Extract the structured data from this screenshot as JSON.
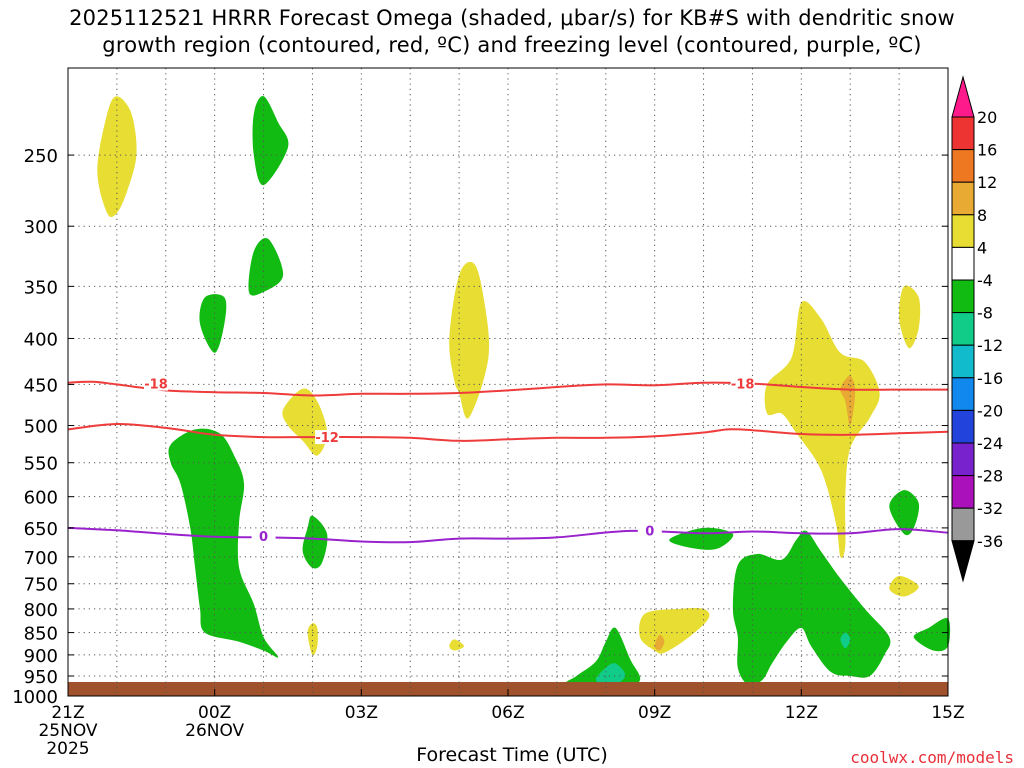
{
  "chart_data": {
    "type": "heatmap",
    "title_line1": "2025112521 HRRR Forecast Omega (shaded, μbar/s) for KB#S with dendritic snow",
    "title_line2": "growth region (contoured, red, ºC) and freezing level (contoured, purple, ºC)",
    "xlabel": "Forecast Time (UTC)",
    "credit": "coolwx.com/models",
    "x_ticks": [
      {
        "h": 0,
        "label": "21Z",
        "sub1": "25NOV",
        "sub2": "2025"
      },
      {
        "h": 3,
        "label": "00Z",
        "sub1": "26NOV",
        "sub2": ""
      },
      {
        "h": 6,
        "label": "03Z",
        "sub1": "",
        "sub2": ""
      },
      {
        "h": 9,
        "label": "06Z",
        "sub1": "",
        "sub2": ""
      },
      {
        "h": 12,
        "label": "09Z",
        "sub1": "",
        "sub2": ""
      },
      {
        "h": 15,
        "label": "12Z",
        "sub1": "",
        "sub2": ""
      },
      {
        "h": 18,
        "label": "15Z",
        "sub1": "",
        "sub2": ""
      }
    ],
    "xlim": [
      0,
      18
    ],
    "y_ticks": [
      250,
      300,
      350,
      400,
      450,
      500,
      550,
      600,
      650,
      700,
      750,
      800,
      850,
      900,
      950,
      1000
    ],
    "ylim": [
      1000,
      200
    ],
    "y_scale": "log",
    "colorbar": {
      "levels": [
        "20",
        "16",
        "12",
        "8",
        "4",
        "-4",
        "-8",
        "-12",
        "-16",
        "-20",
        "-24",
        "-28",
        "-32",
        "-36"
      ],
      "colors": [
        "#ff1a8c",
        "#ee3333",
        "#ee7722",
        "#e8aa33",
        "#e8dd33",
        "#ffffff",
        "#11bb11",
        "#11cc88",
        "#11bbcc",
        "#1188ee",
        "#2244dd",
        "#7722cc",
        "#aa11bb",
        "#999999",
        "#000000"
      ]
    },
    "contours": [
      {
        "label": "-18",
        "color": "#ee3b3b",
        "label_at": [
          [
            1.8,
            449
          ],
          [
            13.8,
            449
          ]
        ],
        "points": [
          [
            0,
            448
          ],
          [
            0.5,
            447
          ],
          [
            1,
            450
          ],
          [
            2,
            457
          ],
          [
            3,
            459
          ],
          [
            4,
            460
          ],
          [
            5,
            463
          ],
          [
            6,
            461
          ],
          [
            7,
            461
          ],
          [
            8,
            460
          ],
          [
            9,
            457
          ],
          [
            10,
            453
          ],
          [
            11,
            450
          ],
          [
            12,
            451
          ],
          [
            13,
            448
          ],
          [
            14,
            449
          ],
          [
            15,
            453
          ],
          [
            16,
            456
          ],
          [
            17,
            456
          ],
          [
            18,
            456
          ]
        ]
      },
      {
        "label": "-12",
        "color": "#ee3b3b",
        "label_at": [
          [
            5.3,
            515
          ]
        ],
        "points": [
          [
            0,
            505
          ],
          [
            1,
            498
          ],
          [
            2,
            503
          ],
          [
            3,
            512
          ],
          [
            4,
            515
          ],
          [
            5,
            515
          ],
          [
            6,
            515
          ],
          [
            7,
            516
          ],
          [
            8,
            520
          ],
          [
            9,
            518
          ],
          [
            10,
            516
          ],
          [
            11,
            516
          ],
          [
            12,
            514
          ],
          [
            13,
            509
          ],
          [
            13.5,
            505
          ],
          [
            14,
            506
          ],
          [
            15,
            511
          ],
          [
            16,
            512
          ],
          [
            17,
            510
          ],
          [
            18,
            508
          ]
        ]
      },
      {
        "label": "0",
        "color": "#9922cc",
        "label_at": [
          [
            4.0,
            664
          ],
          [
            11.9,
            654
          ]
        ],
        "points": [
          [
            0,
            650
          ],
          [
            1,
            654
          ],
          [
            2,
            660
          ],
          [
            3,
            665
          ],
          [
            4,
            666
          ],
          [
            5,
            668
          ],
          [
            6,
            673
          ],
          [
            7,
            674
          ],
          [
            8,
            668
          ],
          [
            9,
            668
          ],
          [
            10,
            666
          ],
          [
            11.5,
            655
          ],
          [
            13,
            659
          ],
          [
            14,
            656
          ],
          [
            15,
            659
          ],
          [
            16,
            659
          ],
          [
            17,
            652
          ],
          [
            18,
            658
          ]
        ]
      }
    ],
    "regions": [
      {
        "value": "4 to 8",
        "color": "#e8dd33",
        "points": [
          [
            0.8,
            290
          ],
          [
            0.6,
            260
          ],
          [
            0.8,
            225
          ],
          [
            1.0,
            215
          ],
          [
            1.3,
            225
          ],
          [
            1.4,
            250
          ],
          [
            1.2,
            275
          ],
          [
            1.0,
            290
          ]
        ]
      },
      {
        "value": "-4 to -8",
        "color": "#11bb11",
        "points": [
          [
            4.0,
            215
          ],
          [
            4.3,
            230
          ],
          [
            4.5,
            245
          ],
          [
            4.0,
            270
          ],
          [
            3.8,
            250
          ],
          [
            3.8,
            225
          ]
        ]
      },
      {
        "value": "-4 to -8",
        "color": "#11bb11",
        "points": [
          [
            3.7,
            355
          ],
          [
            3.8,
            320
          ],
          [
            4.1,
            310
          ],
          [
            4.4,
            340
          ],
          [
            4.0,
            355
          ]
        ]
      },
      {
        "value": "-4 to -8",
        "color": "#11bb11",
        "points": [
          [
            2.7,
            385
          ],
          [
            2.8,
            360
          ],
          [
            3.2,
            360
          ],
          [
            3.2,
            385
          ],
          [
            3.0,
            415
          ]
        ]
      },
      {
        "value": "4 to 8",
        "color": "#e8dd33",
        "points": [
          [
            7.9,
            445
          ],
          [
            7.8,
            400
          ],
          [
            8.0,
            340
          ],
          [
            8.3,
            330
          ],
          [
            8.5,
            360
          ],
          [
            8.6,
            420
          ],
          [
            8.2,
            490
          ],
          [
            8.0,
            460
          ]
        ]
      },
      {
        "value": "4 to 8",
        "color": "#e8dd33",
        "points": [
          [
            4.4,
            480
          ],
          [
            4.8,
            455
          ],
          [
            5.1,
            470
          ],
          [
            5.3,
            510
          ],
          [
            5.1,
            540
          ],
          [
            4.8,
            520
          ],
          [
            4.5,
            500
          ]
        ]
      },
      {
        "value": "-4 to -8",
        "color": "#11bb11",
        "points": [
          [
            2.1,
            525
          ],
          [
            2.6,
            505
          ],
          [
            3.1,
            510
          ],
          [
            3.4,
            540
          ],
          [
            3.6,
            580
          ],
          [
            3.5,
            640
          ],
          [
            3.5,
            720
          ],
          [
            3.8,
            790
          ],
          [
            4.0,
            860
          ],
          [
            4.3,
            905
          ],
          [
            4.0,
            890
          ],
          [
            3.5,
            870
          ],
          [
            2.8,
            850
          ],
          [
            2.7,
            800
          ],
          [
            2.6,
            720
          ],
          [
            2.5,
            650
          ],
          [
            2.3,
            580
          ],
          [
            2.1,
            550
          ]
        ]
      },
      {
        "value": "-4 to -8",
        "color": "#11bb11",
        "points": [
          [
            4.8,
            690
          ],
          [
            4.9,
            650
          ],
          [
            5.0,
            630
          ],
          [
            5.3,
            660
          ],
          [
            5.2,
            710
          ],
          [
            5.0,
            720
          ]
        ]
      },
      {
        "value": "4 to 8",
        "color": "#e8dd33",
        "points": [
          [
            4.9,
            850
          ],
          [
            5.0,
            830
          ],
          [
            5.1,
            840
          ],
          [
            5.1,
            880
          ],
          [
            5.0,
            900
          ]
        ]
      },
      {
        "value": "4 to 8",
        "color": "#e8dd33",
        "points": [
          [
            7.8,
            880
          ],
          [
            7.9,
            865
          ],
          [
            8.1,
            880
          ],
          [
            7.9,
            890
          ]
        ]
      },
      {
        "value": "4 to 8",
        "color": "#e8dd33",
        "points": [
          [
            14.3,
            485
          ],
          [
            14.3,
            450
          ],
          [
            14.8,
            420
          ],
          [
            15.0,
            365
          ],
          [
            15.4,
            380
          ],
          [
            15.8,
            415
          ],
          [
            16.3,
            425
          ],
          [
            16.6,
            460
          ],
          [
            16.4,
            490
          ],
          [
            16.0,
            530
          ],
          [
            15.9,
            600
          ],
          [
            15.9,
            680
          ],
          [
            15.8,
            700
          ],
          [
            15.7,
            640
          ],
          [
            15.4,
            560
          ],
          [
            14.9,
            510
          ],
          [
            14.6,
            485
          ]
        ]
      },
      {
        "value": "8 to 12",
        "color": "#e8aa33",
        "points": [
          [
            15.8,
            455
          ],
          [
            16.0,
            440
          ],
          [
            16.1,
            460
          ],
          [
            16.0,
            500
          ],
          [
            15.9,
            470
          ]
        ]
      },
      {
        "value": "4 to 8",
        "color": "#e8dd33",
        "points": [
          [
            17.0,
            380
          ],
          [
            17.1,
            350
          ],
          [
            17.4,
            360
          ],
          [
            17.4,
            390
          ],
          [
            17.2,
            410
          ]
        ]
      },
      {
        "value": "-4 to -8",
        "color": "#11bb11",
        "points": [
          [
            16.8,
            615
          ],
          [
            17.1,
            590
          ],
          [
            17.4,
            610
          ],
          [
            17.3,
            650
          ],
          [
            17.1,
            660
          ]
        ]
      },
      {
        "value": "4 to 8",
        "color": "#e8dd33",
        "points": [
          [
            16.8,
            760
          ],
          [
            17.0,
            735
          ],
          [
            17.4,
            755
          ],
          [
            17.1,
            775
          ]
        ]
      },
      {
        "value": "-4 to -8",
        "color": "#11bb11",
        "points": [
          [
            12.3,
            670
          ],
          [
            13.0,
            650
          ],
          [
            13.6,
            660
          ],
          [
            13.3,
            685
          ],
          [
            12.8,
            685
          ]
        ]
      },
      {
        "value": "4 to 8",
        "color": "#e8dd33",
        "points": [
          [
            11.7,
            860
          ],
          [
            11.8,
            810
          ],
          [
            12.5,
            800
          ],
          [
            13.0,
            800
          ],
          [
            13.1,
            820
          ],
          [
            12.7,
            860
          ],
          [
            12.2,
            895
          ],
          [
            12.0,
            890
          ]
        ]
      },
      {
        "value": "8 to 12",
        "color": "#e8aa33",
        "points": [
          [
            12.0,
            880
          ],
          [
            12.1,
            855
          ],
          [
            12.2,
            870
          ],
          [
            12.1,
            890
          ]
        ]
      },
      {
        "value": "-4 to -8",
        "color": "#11bb11",
        "points": [
          [
            10.2,
            970
          ],
          [
            10.4,
            950
          ],
          [
            10.8,
            915
          ],
          [
            11.0,
            870
          ],
          [
            11.2,
            840
          ],
          [
            11.5,
            910
          ],
          [
            11.7,
            960
          ],
          [
            11.3,
            985
          ],
          [
            10.8,
            990
          ]
        ]
      },
      {
        "value": "-8 to -12",
        "color": "#11cc88",
        "points": [
          [
            10.8,
            960
          ],
          [
            11.0,
            930
          ],
          [
            11.2,
            920
          ],
          [
            11.4,
            950
          ],
          [
            11.1,
            975
          ]
        ]
      },
      {
        "value": "-4 to -8",
        "color": "#11bb11",
        "points": [
          [
            13.7,
            715
          ],
          [
            14.1,
            695
          ],
          [
            14.6,
            705
          ],
          [
            14.9,
            670
          ],
          [
            15.1,
            655
          ],
          [
            15.4,
            690
          ],
          [
            15.8,
            740
          ],
          [
            16.3,
            800
          ],
          [
            16.8,
            860
          ],
          [
            16.7,
            900
          ],
          [
            16.4,
            950
          ],
          [
            16.0,
            950
          ],
          [
            15.6,
            940
          ],
          [
            15.2,
            880
          ],
          [
            15.0,
            840
          ],
          [
            14.7,
            870
          ],
          [
            14.4,
            920
          ],
          [
            14.2,
            960
          ],
          [
            13.9,
            970
          ],
          [
            13.7,
            930
          ],
          [
            13.7,
            860
          ],
          [
            13.6,
            800
          ]
        ]
      },
      {
        "value": "-8 to -12",
        "color": "#11cc88",
        "points": [
          [
            15.8,
            865
          ],
          [
            15.9,
            850
          ],
          [
            16.0,
            865
          ],
          [
            15.9,
            885
          ]
        ]
      },
      {
        "value": "-4 to -8",
        "color": "#11bb11",
        "points": [
          [
            17.3,
            860
          ],
          [
            17.6,
            840
          ],
          [
            18.0,
            820
          ],
          [
            18.0,
            880
          ],
          [
            17.7,
            890
          ]
        ]
      }
    ]
  }
}
